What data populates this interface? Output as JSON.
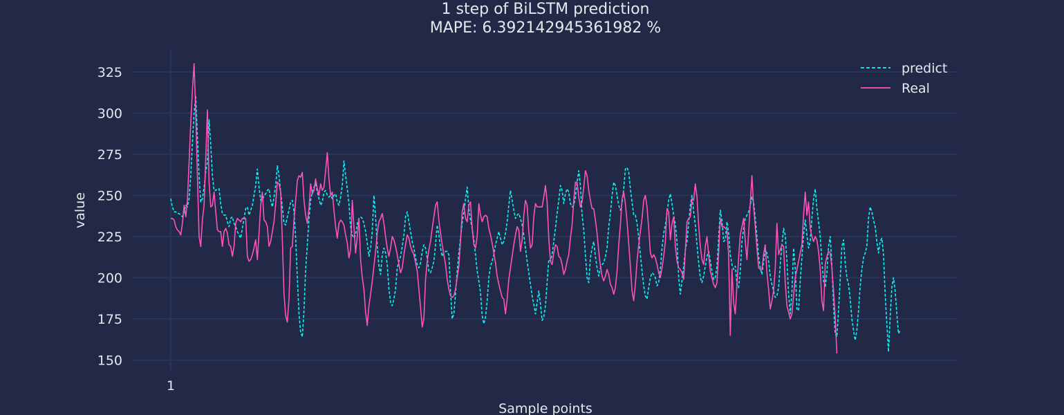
{
  "colors": {
    "background": "#212946",
    "grid": "#2A3459",
    "axis": "#2A3459",
    "text": "#e6e8ee",
    "predict": "#08F7FE",
    "real": "#FE53BB"
  },
  "chart_data": {
    "type": "line",
    "title": "1 step of BiLSTM prediction",
    "subtitle": "MAPE: 6.392142945361982 %",
    "xlabel": "Sample points",
    "ylabel": "value",
    "x_tick_labels": [
      {
        "x": 1,
        "label": "1"
      }
    ],
    "y_ticks": [
      150,
      175,
      200,
      225,
      250,
      275,
      300,
      325
    ],
    "ylim": [
      145,
      340
    ],
    "xlim": [
      1,
      385
    ],
    "grid": true,
    "legend_position": "top-right",
    "series": [
      {
        "name": "predict",
        "style": "dashed",
        "color": "#08F7FE",
        "values": [
          248,
          243,
          240,
          240,
          239,
          239,
          238,
          237,
          240,
          244,
          243,
          248,
          262,
          282,
          300,
          310,
          286,
          262,
          246,
          248,
          255,
          264,
          270,
          296,
          281,
          262,
          253,
          253,
          254,
          254,
          245,
          239,
          238,
          238,
          234,
          231,
          236,
          237,
          233,
          231,
          228,
          226,
          224,
          230,
          236,
          242,
          243,
          238,
          241,
          244,
          250,
          256,
          266,
          255,
          247,
          247,
          250,
          251,
          253,
          254,
          247,
          243,
          249,
          256,
          268,
          262,
          252,
          243,
          233,
          232,
          237,
          241,
          246,
          247,
          240,
          224,
          200,
          178,
          167,
          164,
          180,
          205,
          220,
          236,
          247,
          252,
          255,
          257,
          252,
          248,
          244,
          246,
          252,
          253,
          250,
          249,
          250,
          248,
          250,
          251,
          246,
          244,
          249,
          256,
          271,
          262,
          254,
          245,
          231,
          226,
          224,
          226,
          233,
          236,
          237,
          236,
          233,
          228,
          221,
          213,
          218,
          228,
          250,
          237,
          219,
          207,
          202,
          214,
          218,
          215,
          208,
          193,
          185,
          183,
          187,
          193,
          206,
          210,
          213,
          219,
          226,
          237,
          240,
          234,
          228,
          222,
          218,
          212,
          208,
          206,
          209,
          216,
          220,
          218,
          212,
          204,
          203,
          206,
          210,
          220,
          232,
          226,
          218,
          213,
          215,
          216,
          216,
          214,
          192,
          175,
          178,
          190,
          204,
          215,
          224,
          233,
          240,
          248,
          255,
          242,
          235,
          230,
          223,
          214,
          204,
          198,
          191,
          177,
          172,
          176,
          186,
          200,
          207,
          210,
          214,
          220,
          224,
          228,
          224,
          220,
          222,
          227,
          234,
          244,
          253,
          247,
          241,
          236,
          238,
          239,
          236,
          232,
          226,
          218,
          210,
          203,
          196,
          189,
          184,
          178,
          185,
          192,
          184,
          174,
          176,
          183,
          197,
          211,
          210,
          214,
          222,
          230,
          239,
          247,
          256,
          253,
          245,
          251,
          254,
          252,
          245,
          243,
          244,
          249,
          258,
          265,
          256,
          238,
          229,
          214,
          200,
          197,
          212,
          218,
          222,
          213,
          206,
          201,
          206,
          208,
          209,
          213,
          218,
          231,
          239,
          250,
          258,
          256,
          250,
          244,
          241,
          245,
          254,
          266,
          267,
          264,
          254,
          246,
          238,
          238,
          233,
          224,
          214,
          204,
          195,
          189,
          187,
          194,
          200,
          203,
          202,
          200,
          195,
          197,
          205,
          218,
          227,
          232,
          239,
          247,
          251,
          245,
          238,
          232,
          222,
          200,
          190,
          198,
          207,
          217,
          222,
          233,
          244,
          250,
          240,
          232,
          220,
          209,
          200,
          197,
          201,
          207,
          213,
          216,
          210,
          204,
          199,
          200,
          207,
          224,
          241,
          235,
          222,
          223,
          234,
          227,
          214,
          208,
          205,
          207,
          196,
          194,
          204,
          222,
          230,
          236,
          238,
          240,
          244,
          249,
          246,
          236,
          225,
          213,
          206,
          202,
          210,
          217,
          215,
          210,
          201,
          196,
          192,
          188,
          189,
          194,
          208,
          220,
          230,
          226,
          210,
          190,
          178,
          191,
          218,
          206,
          181,
          180,
          198,
          212,
          226,
          235,
          226,
          218,
          222,
          236,
          248,
          254,
          242,
          234,
          225,
          210,
          198,
          194,
          203,
          219,
          225,
          208,
          183,
          166,
          164,
          180,
          199,
          219,
          223,
          209,
          200,
          196,
          187,
          175,
          168,
          162,
          168,
          180,
          195,
          205,
          212,
          215,
          219,
          236,
          243,
          240,
          235,
          231,
          222,
          215,
          222,
          224,
          214,
          190,
          172,
          155,
          176,
          194,
          200,
          192,
          178,
          166,
          168
        ]
      },
      {
        "name": "Real",
        "style": "solid",
        "color": "#FE53BB",
        "values": [
          236,
          236,
          235,
          231,
          229,
          228,
          226,
          233,
          244,
          237,
          247,
          270,
          294,
          314,
          330,
          300,
          262,
          225,
          219,
          235,
          244,
          272,
          302,
          258,
          243,
          244,
          252,
          240,
          229,
          228,
          228,
          219,
          228,
          230,
          227,
          220,
          219,
          213,
          219,
          233,
          236,
          235,
          234,
          236,
          236,
          236,
          213,
          210,
          211,
          214,
          218,
          223,
          211,
          227,
          244,
          252,
          235,
          234,
          231,
          219,
          222,
          228,
          234,
          245,
          258,
          257,
          252,
          223,
          190,
          177,
          173,
          187,
          218,
          219,
          235,
          247,
          259,
          262,
          261,
          264,
          247,
          238,
          233,
          242,
          257,
          251,
          253,
          260,
          254,
          250,
          257,
          253,
          255,
          265,
          276,
          260,
          250,
          252,
          241,
          231,
          224,
          233,
          235,
          234,
          232,
          226,
          221,
          212,
          217,
          247,
          231,
          215,
          225,
          236,
          211,
          200,
          193,
          179,
          171,
          183,
          190,
          198,
          207,
          216,
          227,
          234,
          236,
          239,
          233,
          225,
          218,
          213,
          218,
          225,
          223,
          219,
          214,
          208,
          203,
          206,
          214,
          220,
          226,
          224,
          219,
          216,
          214,
          209,
          204,
          193,
          182,
          170,
          175,
          199,
          210,
          217,
          222,
          230,
          237,
          244,
          246,
          235,
          227,
          220,
          214,
          208,
          199,
          193,
          189,
          188,
          189,
          193,
          200,
          207,
          222,
          240,
          245,
          236,
          234,
          244,
          246,
          230,
          220,
          218,
          225,
          245,
          238,
          234,
          237,
          238,
          237,
          230,
          226,
          221,
          215,
          209,
          201,
          196,
          192,
          188,
          187,
          178,
          187,
          199,
          206,
          213,
          220,
          226,
          231,
          229,
          216,
          223,
          238,
          247,
          244,
          228,
          218,
          220,
          237,
          245,
          243,
          243,
          243,
          243,
          249,
          256,
          246,
          224,
          210,
          208,
          215,
          220,
          219,
          213,
          212,
          208,
          202,
          205,
          210,
          214,
          224,
          232,
          247,
          258,
          258,
          249,
          243,
          246,
          255,
          265,
          262,
          253,
          247,
          242,
          242,
          235,
          227,
          216,
          207,
          201,
          198,
          201,
          205,
          202,
          196,
          194,
          190,
          194,
          204,
          220,
          232,
          248,
          252,
          245,
          234,
          221,
          207,
          192,
          186,
          196,
          210,
          220,
          228,
          236,
          247,
          250,
          243,
          230,
          215,
          212,
          214,
          212,
          208,
          203,
          200,
          206,
          213,
          222,
          242,
          240,
          223,
          233,
          237,
          219,
          210,
          206,
          205,
          203,
          199,
          216,
          234,
          236,
          237,
          248,
          247,
          257,
          249,
          232,
          219,
          211,
          208,
          219,
          225,
          214,
          204,
          200,
          196,
          194,
          197,
          215,
          236,
          231,
          231,
          230,
          229,
          214,
          165,
          205,
          185,
          178,
          196,
          212,
          226,
          231,
          236,
          222,
          211,
          227,
          245,
          262,
          243,
          231,
          218,
          206,
          205,
          205,
          214,
          220,
          203,
          193,
          181,
          186,
          192,
          206,
          233,
          214,
          217,
          220,
          219,
          197,
          183,
          179,
          175,
          178,
          189,
          200,
          205,
          210,
          215,
          220,
          238,
          252,
          238,
          246,
          230,
          225,
          222,
          225,
          223,
          216,
          205,
          186,
          180,
          208,
          213,
          216,
          215,
          206,
          192,
          176,
          154
        ]
      }
    ]
  }
}
